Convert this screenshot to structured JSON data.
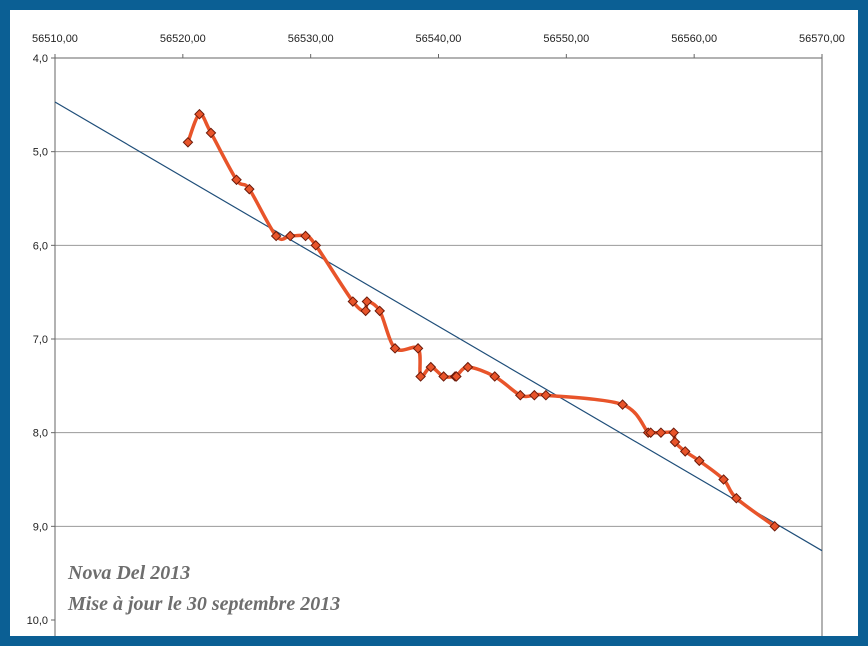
{
  "chart_data": {
    "type": "scatter",
    "title": "",
    "xlabel": "",
    "ylabel": "",
    "xlim": [
      56510,
      56570
    ],
    "ylim": [
      4.0,
      10.0
    ],
    "y_inverted": true,
    "x_ticks": [
      56510,
      56520,
      56530,
      56540,
      56550,
      56560,
      56570
    ],
    "x_tick_labels": [
      "56510,00",
      "56520,00",
      "56530,00",
      "56540,00",
      "56550,00",
      "56560,00",
      "56570,00"
    ],
    "y_ticks": [
      4,
      5,
      6,
      7,
      8,
      9,
      10
    ],
    "y_tick_labels": [
      "4,0",
      "5,0",
      "6,0",
      "7,0",
      "8,0",
      "9,0",
      "10,0"
    ],
    "x_axis_position": "top",
    "grid": "horizontal",
    "series": [
      {
        "type": "line-smooth-with-markers",
        "color": "#e8542a",
        "marker_color": "#e8542a",
        "marker_edge": "#6b1a0a",
        "marker": "diamond",
        "x": [
          56520.4,
          56521.3,
          56522.2,
          56524.2,
          56525.2,
          56527.3,
          56528.4,
          56529.6,
          56530.4,
          56533.3,
          56534.3,
          56534.4,
          56535.4,
          56536.6,
          56538.4,
          56538.6,
          56539.4,
          56540.4,
          56541.3,
          56541.4,
          56542.3,
          56544.4,
          56546.4,
          56547.5,
          56548.4,
          56554.4,
          56556.4,
          56556.6,
          56557.4,
          56558.4,
          56558.5,
          56559.3,
          56560.4,
          56562.3,
          56563.3,
          56566.3
        ],
        "y": [
          4.9,
          4.6,
          4.8,
          5.3,
          5.4,
          5.9,
          5.9,
          5.9,
          6.0,
          6.6,
          6.7,
          6.6,
          6.7,
          7.1,
          7.1,
          7.4,
          7.3,
          7.4,
          7.4,
          7.4,
          7.3,
          7.4,
          7.6,
          7.6,
          7.6,
          7.7,
          8.0,
          8.0,
          8.0,
          8.0,
          8.1,
          8.2,
          8.3,
          8.5,
          8.7,
          9.0
        ]
      },
      {
        "type": "trendline",
        "color": "#1f4e79",
        "x": [
          56510,
          56570
        ],
        "y": [
          4.47,
          9.26
        ]
      }
    ],
    "annotations": [
      "Nova Del 2013",
      "Mise à jour le 30 septembre 2013"
    ]
  }
}
